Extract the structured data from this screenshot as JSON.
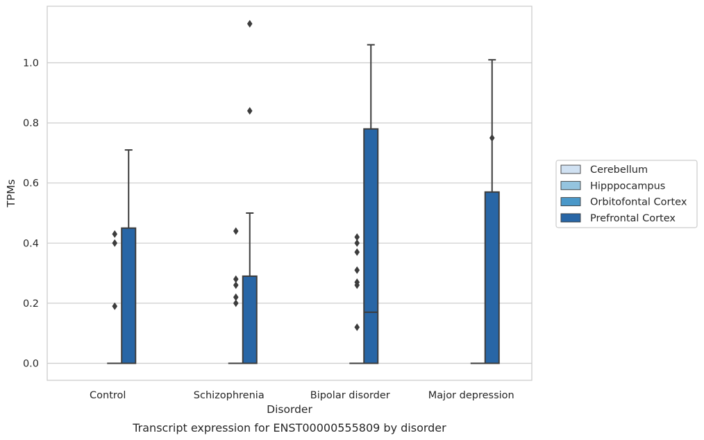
{
  "chart_data": {
    "type": "box",
    "caption": "Transcript expression for ENST00000555809 by disorder",
    "xlabel": "Disorder",
    "ylabel": "TPMs",
    "ylim": [
      -0.055,
      1.19
    ],
    "yticks": [
      "0.0",
      "0.2",
      "0.4",
      "0.6",
      "0.8",
      "1.0"
    ],
    "grid": "horizontal",
    "legend_position": "right",
    "categories": [
      "Control",
      "Schizophrenia",
      "Bipolar disorder",
      "Major depression"
    ],
    "series": [
      {
        "name": "Cerebellum",
        "color": "#d0e1f2",
        "boxes": [
          null,
          null,
          null,
          null
        ]
      },
      {
        "name": "Hipppocampus",
        "color": "#94c4df",
        "boxes": [
          null,
          null,
          null,
          null
        ]
      },
      {
        "name": "Orbitofontal Cortex",
        "color": "#4a98c9",
        "boxes": [
          {
            "q1": 0,
            "median": 0,
            "q3": 0,
            "whislo": 0,
            "whishi": 0,
            "fliers": [
              0.19,
              0.4,
              0.43
            ]
          },
          {
            "q1": 0,
            "median": 0,
            "q3": 0,
            "whislo": 0,
            "whishi": 0,
            "fliers": [
              0.22,
              0.2,
              0.28,
              0.44,
              0.26
            ]
          },
          {
            "q1": 0,
            "median": 0,
            "q3": 0,
            "whislo": 0,
            "whishi": 0,
            "fliers": [
              0.12,
              0.31,
              0.26,
              0.42,
              0.27,
              0.37,
              0.4
            ]
          },
          {
            "q1": 0,
            "median": 0,
            "q3": 0,
            "whislo": 0,
            "whishi": 0,
            "fliers": []
          }
        ]
      },
      {
        "name": "Prefrontal Cortex",
        "color": "#2866a6",
        "boxes": [
          {
            "q1": 0,
            "median": 0,
            "q3": 0.45,
            "whislo": 0,
            "whishi": 0.71,
            "fliers": []
          },
          {
            "q1": 0,
            "median": 0,
            "q3": 0.29,
            "whislo": 0,
            "whishi": 0.5,
            "fliers": [
              0.84,
              1.13
            ]
          },
          {
            "q1": 0,
            "median": 0.17,
            "q3": 0.78,
            "whislo": 0,
            "whishi": 1.06,
            "fliers": []
          },
          {
            "q1": 0,
            "median": 0,
            "q3": 0.57,
            "whislo": 0,
            "whishi": 1.01,
            "fliers": [
              0.75
            ]
          }
        ]
      }
    ]
  }
}
